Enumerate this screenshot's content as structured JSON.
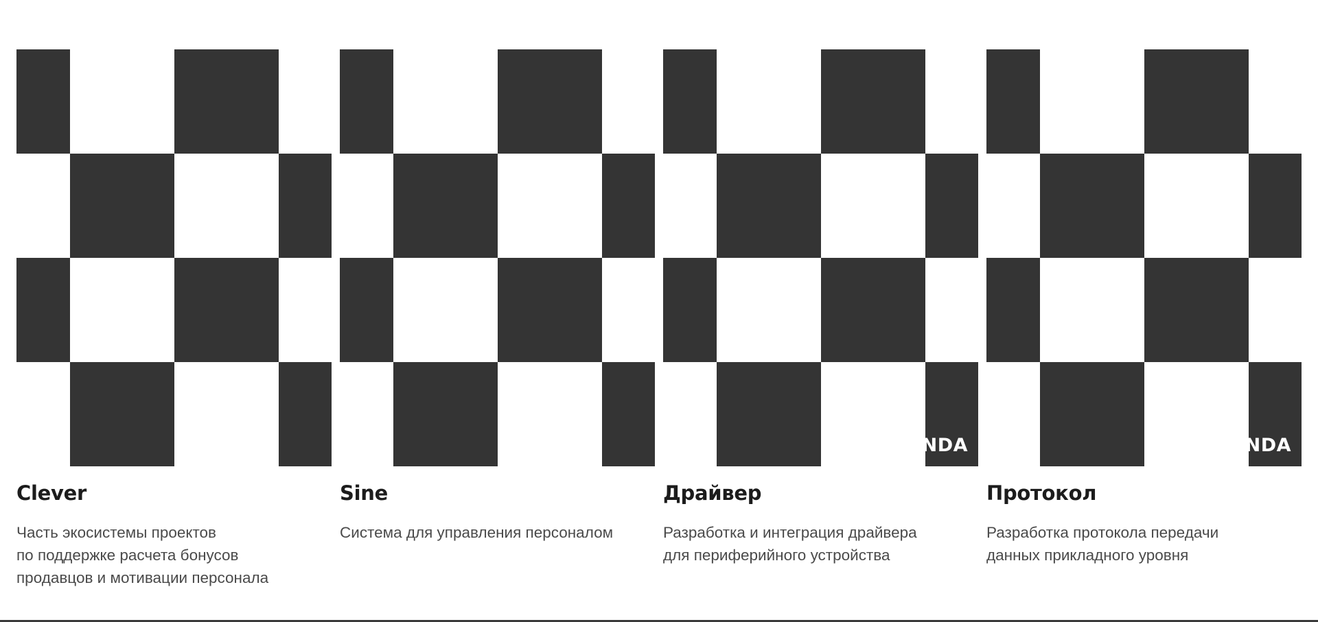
{
  "cards": [
    {
      "title": "Clever",
      "description": "Часть экосистемы проектов\nпо поддержке расчета бонусов\nпродавцов и мотивации персонала",
      "badge": ""
    },
    {
      "title": "Sine",
      "description": "Система для управления персоналом",
      "badge": ""
    },
    {
      "title": "Драйвер",
      "description": "Разработка и интеграция драйвера\nдля периферийного устройства",
      "badge": "NDA"
    },
    {
      "title": "Протокол",
      "description": "Разработка протокола передачи\nданных прикладного уровня",
      "badge": "NDA"
    }
  ],
  "colors": {
    "pattern_dark": "#343434",
    "title": "#1c1c1c",
    "description": "#4a4a4a",
    "background": "#ffffff"
  }
}
